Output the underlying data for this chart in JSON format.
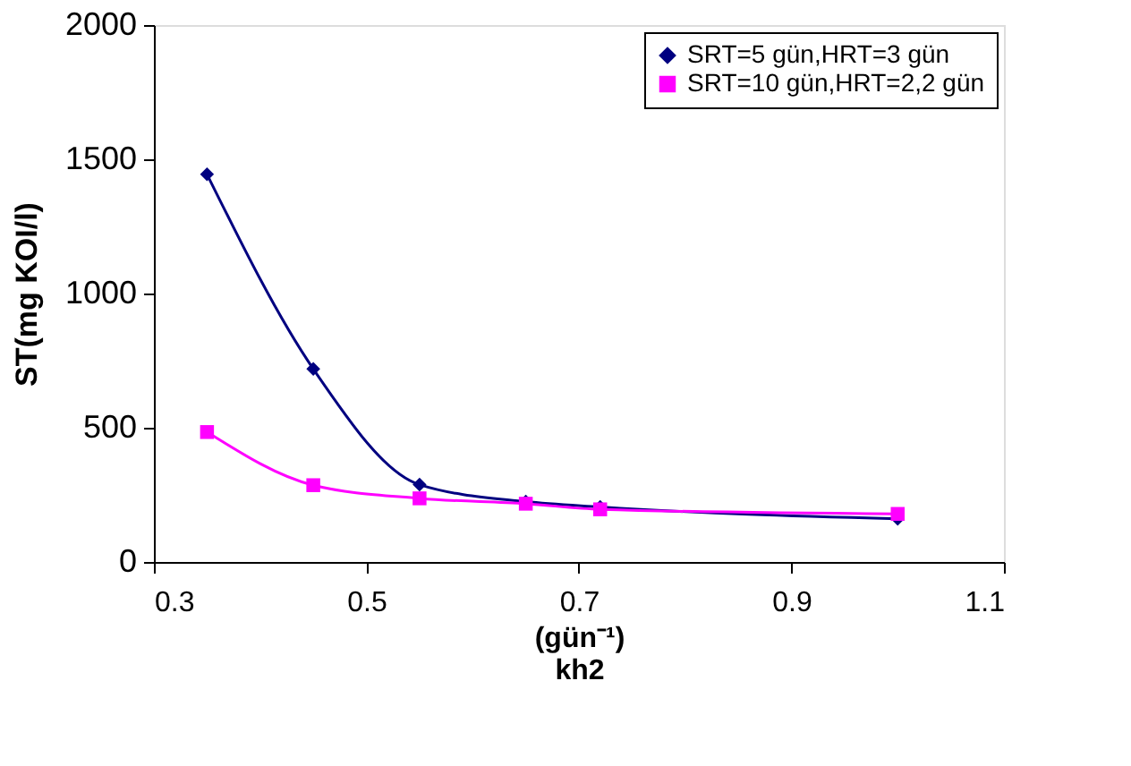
{
  "chart_data": {
    "type": "line",
    "xlabel": "(gün⁻¹)\nkh2",
    "ylabel": "ST(mg KOI/l)",
    "x": [
      0.35,
      0.45,
      0.55,
      0.65,
      0.72,
      1.0
    ],
    "series": [
      {
        "name": "SRT=5 gün,HRT=3 gün",
        "color": "#000080",
        "marker": "diamond",
        "values": [
          1444,
          719,
          288,
          225,
          205,
          161
        ]
      },
      {
        "name": "SRT=10 gün,HRT=2,2 gün",
        "color": "#ff00ff",
        "marker": "square",
        "values": [
          484,
          286,
          237,
          217,
          196,
          179
        ]
      }
    ],
    "xlim": [
      0.3,
      1.1
    ],
    "xticks": [
      0.3,
      0.5,
      0.7,
      0.9,
      1.1
    ],
    "ylim": [
      0,
      2000
    ],
    "yticks": [
      0,
      500,
      1000,
      1500,
      2000
    ],
    "grid": false,
    "legend": "top right",
    "line_style": "solid"
  }
}
